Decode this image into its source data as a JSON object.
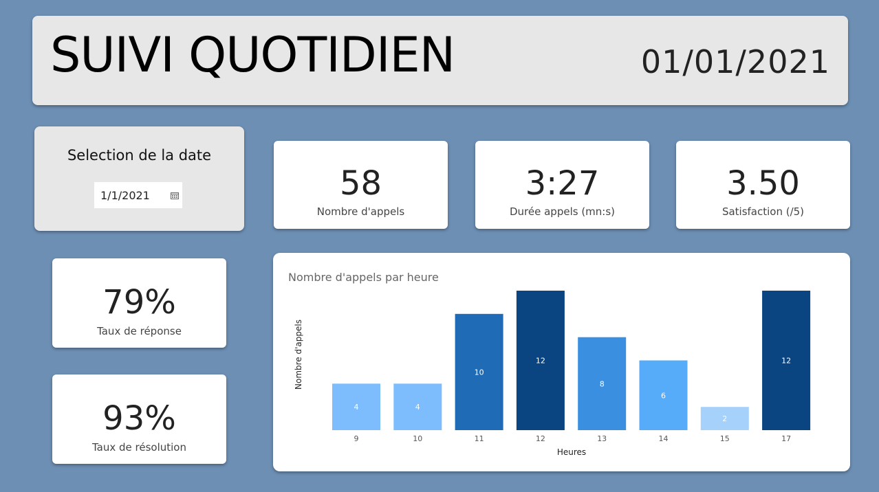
{
  "header": {
    "title": "SUIVI QUOTIDIEN",
    "date": "01/01/2021"
  },
  "date_selector": {
    "title": "Selection de la date",
    "value": "1/1/2021",
    "icon": "calendar-icon"
  },
  "kpis": {
    "calls": {
      "value": "58",
      "label": "Nombre d'appels"
    },
    "duration": {
      "value": "3:27",
      "label": "Durée appels (mn:s)"
    },
    "satisfaction": {
      "value": "3.50",
      "label": "Satisfaction (/5)"
    },
    "response_rate": {
      "value": "79%",
      "label": "Taux de réponse"
    },
    "resolution_rate": {
      "value": "93%",
      "label": "Taux de résolution"
    }
  },
  "colors": {
    "background": "#6d8fb4",
    "panel": "#e7e7e8"
  },
  "chart_data": {
    "type": "bar",
    "title": "Nombre d'appels par heure",
    "xlabel": "Heures",
    "ylabel": "Nombre d'appels",
    "categories": [
      "9",
      "10",
      "11",
      "12",
      "13",
      "14",
      "15",
      "17"
    ],
    "values": [
      4,
      4,
      10,
      12,
      8,
      6,
      2,
      12
    ],
    "bar_colors": [
      "#7dbdfd",
      "#7dbdfd",
      "#1f6bb5",
      "#0a4581",
      "#3a8fe0",
      "#57acf9",
      "#a6d1fb",
      "#0a4581"
    ],
    "ylim": [
      0,
      12
    ],
    "data_labels": true,
    "grid": false,
    "legend": "none"
  }
}
